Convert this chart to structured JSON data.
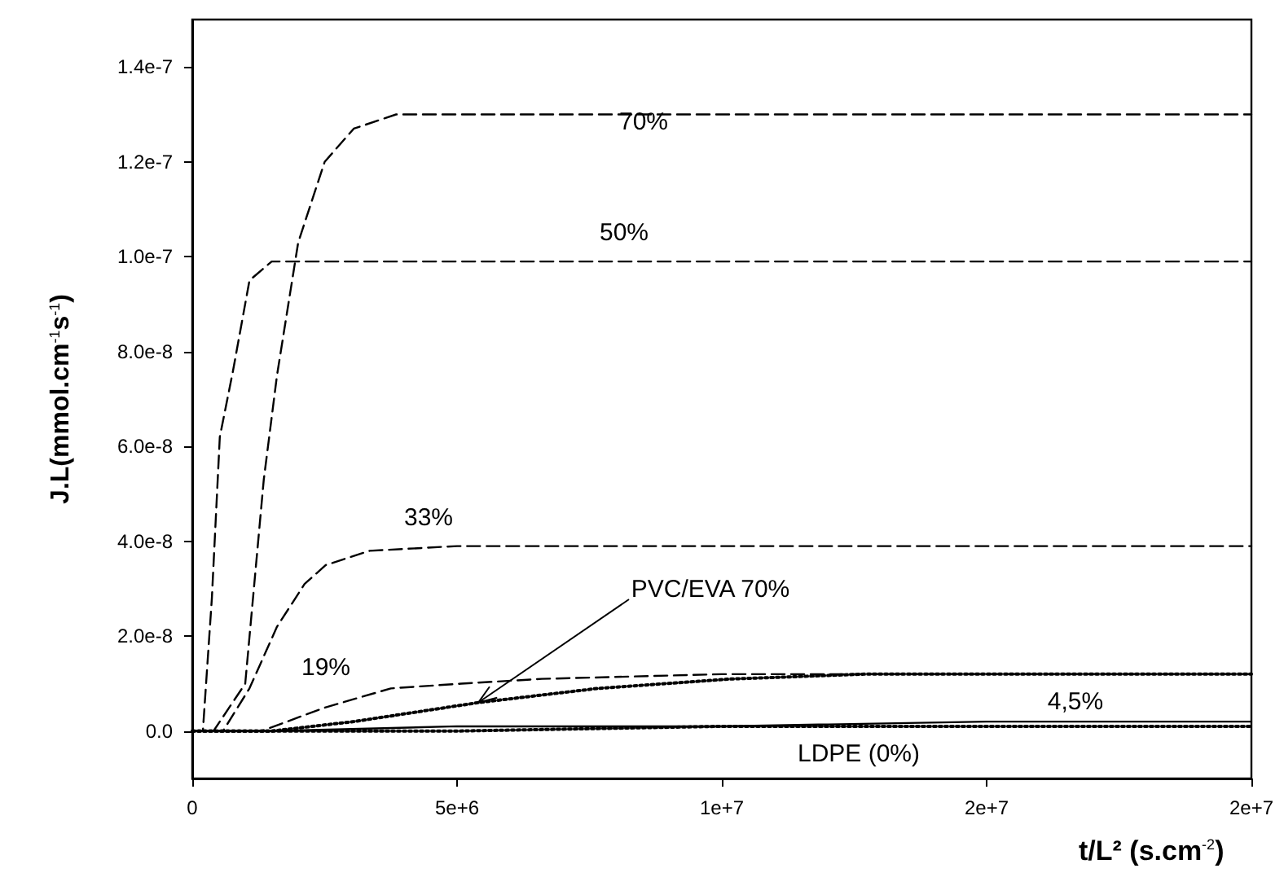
{
  "chart_data": {
    "type": "line",
    "xlabel": "t/L² (s.cm$^{-2}$)",
    "ylabel": "J.L(mmol.cm$^{-1}$s$^{-1}$)",
    "xlim": [
      0,
      20000000
    ],
    "xticks": [
      0,
      {
        "value": 5000000,
        "label": "5e+6"
      },
      {
        "value": 10000000,
        "label": "1e+7"
      },
      {
        "value": 15000000,
        "label": "2e+7"
      },
      {
        "value": 20000000,
        "label": "2e+7"
      }
    ],
    "ylim": [
      -1e-08,
      1.5e-07
    ],
    "yticks": [
      {
        "value": 0,
        "label": "0.0"
      },
      {
        "value": 2e-08,
        "label": "2.0e-8"
      },
      {
        "value": 4e-08,
        "label": "4.0e-8"
      },
      {
        "value": 6e-08,
        "label": "6.0e-8"
      },
      {
        "value": 8e-08,
        "label": "8.0e-8"
      },
      {
        "value": 1e-07,
        "label": "1.0e-7"
      },
      {
        "value": 1.2e-07,
        "label": "1.2e-7"
      },
      {
        "value": 1.4e-07,
        "label": "1.4e-7"
      }
    ],
    "grid": false,
    "legend": false,
    "marker": "none",
    "series": [
      {
        "name": "70%",
        "color": "#000000",
        "line_style": "dashed",
        "x": [
          0,
          400000,
          1000000,
          1350000,
          1600000,
          2000000,
          2500000,
          3050000,
          3850000,
          5000000,
          20000000
        ],
        "values": [
          0,
          0,
          1e-08,
          5.3e-08,
          7.5e-08,
          1.03e-07,
          1.2e-07,
          1.27e-07,
          1.3e-07,
          1.3e-07,
          1.3e-07
        ]
      },
      {
        "name": "50%",
        "color": "#000000",
        "line_style": "dashed",
        "x": [
          0,
          200000,
          370000,
          520000,
          770000,
          1080000,
          1500000,
          2000000,
          20000000
        ],
        "values": [
          0,
          0,
          2.8e-08,
          6.2e-08,
          7.6e-08,
          9.5e-08,
          9.9e-08,
          9.9e-08,
          9.9e-08
        ]
      },
      {
        "name": "33%",
        "color": "#000000",
        "line_style": "dashed",
        "x": [
          0,
          580000,
          1080000,
          1600000,
          2120000,
          2520000,
          3350000,
          5000000,
          20000000
        ],
        "values": [
          0,
          0,
          9e-09,
          2.2e-08,
          3.1e-08,
          3.5e-08,
          3.8e-08,
          3.9e-08,
          3.9e-08
        ]
      },
      {
        "name": "19%",
        "color": "#000000",
        "line_style": "dashed",
        "x": [
          0,
          1300000,
          2520000,
          3750000,
          5080000,
          6600000,
          10000000,
          20000000
        ],
        "values": [
          0,
          0,
          5e-09,
          9e-09,
          1e-08,
          1.1e-08,
          1.2e-08,
          1.2e-08
        ]
      },
      {
        "name": "PVC/EVA 70%",
        "color": "#000000",
        "line_style": "dotted",
        "x": [
          0,
          1500000,
          3050000,
          5400000,
          7660000,
          10200000,
          12700000,
          20000000
        ],
        "values": [
          0,
          0,
          2e-09,
          6e-09,
          9e-09,
          1.1e-08,
          1.2e-08,
          1.2e-08
        ]
      },
      {
        "name": "4,5%",
        "color": "#000000",
        "line_style": "solid",
        "x": [
          0,
          1500000,
          5000000,
          10000000,
          15000000,
          20000000
        ],
        "values": [
          0,
          0,
          1e-09,
          1e-09,
          2e-09,
          2e-09
        ]
      },
      {
        "name": "LDPE (0%)",
        "color": "#000000",
        "line_style": "dotted",
        "x": [
          0,
          2000000,
          5000000,
          10000000,
          20000000
        ],
        "values": [
          0,
          0,
          0,
          1e-09,
          1e-09
        ]
      }
    ]
  }
}
